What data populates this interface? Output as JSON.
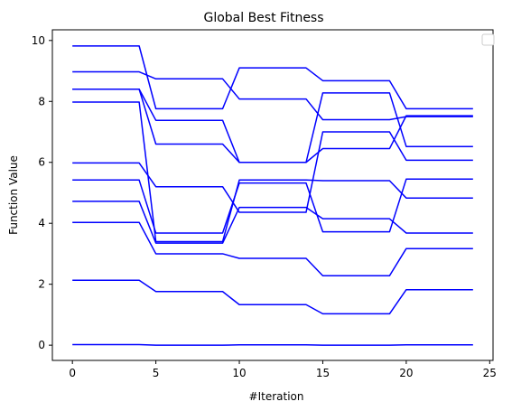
{
  "chart_data": {
    "type": "line",
    "title": "Global Best Fitness",
    "xlabel": "#Iteration",
    "ylabel": "Function Value",
    "xlim": [
      -1.2,
      25.2
    ],
    "ylim": [
      -0.5,
      10.35
    ],
    "xticks": [
      0,
      5,
      10,
      15,
      20,
      25
    ],
    "yticks": [
      0,
      2,
      4,
      6,
      8,
      10
    ],
    "grid": false,
    "legend": "top-right, empty",
    "line_color": "#0000ff",
    "x": [
      0,
      4,
      5,
      9,
      10,
      14,
      15,
      19,
      20,
      24
    ],
    "series": [
      {
        "values": [
          9.82,
          9.82,
          7.76,
          7.76,
          9.1,
          9.1,
          8.68,
          8.68,
          7.76,
          7.76
        ]
      },
      {
        "values": [
          8.97,
          8.97,
          8.74,
          8.74,
          8.08,
          8.08,
          7.4,
          7.4,
          7.5,
          7.5
        ]
      },
      {
        "values": [
          8.4,
          8.4,
          7.38,
          7.38,
          6.0,
          6.0,
          8.28,
          8.28,
          6.52,
          6.52
        ]
      },
      {
        "values": [
          7.98,
          7.98,
          3.4,
          3.4,
          5.42,
          5.42,
          5.4,
          5.4,
          4.83,
          4.83
        ]
      },
      {
        "values": [
          8.4,
          8.4,
          6.6,
          6.6,
          6.0,
          6.0,
          6.45,
          6.45,
          7.53,
          7.53
        ]
      },
      {
        "values": [
          5.98,
          5.98,
          5.2,
          5.2,
          4.36,
          4.36,
          7.0,
          7.0,
          6.07,
          6.07
        ]
      },
      {
        "values": [
          5.42,
          5.42,
          3.68,
          3.68,
          5.32,
          5.32,
          3.72,
          3.72,
          5.45,
          5.45
        ]
      },
      {
        "values": [
          4.72,
          4.72,
          3.35,
          3.35,
          4.52,
          4.52,
          4.15,
          4.15,
          3.68,
          3.68
        ]
      },
      {
        "values": [
          4.03,
          4.03,
          3.0,
          3.0,
          2.85,
          2.85,
          2.28,
          2.28,
          3.17,
          3.17
        ]
      },
      {
        "values": [
          2.13,
          2.13,
          1.76,
          1.76,
          1.33,
          1.33,
          1.03,
          1.03,
          1.82,
          1.82
        ]
      },
      {
        "values": [
          0.02,
          0.02,
          0.0,
          0.0,
          0.01,
          0.01,
          0.0,
          0.0,
          0.01,
          0.01
        ]
      }
    ]
  }
}
